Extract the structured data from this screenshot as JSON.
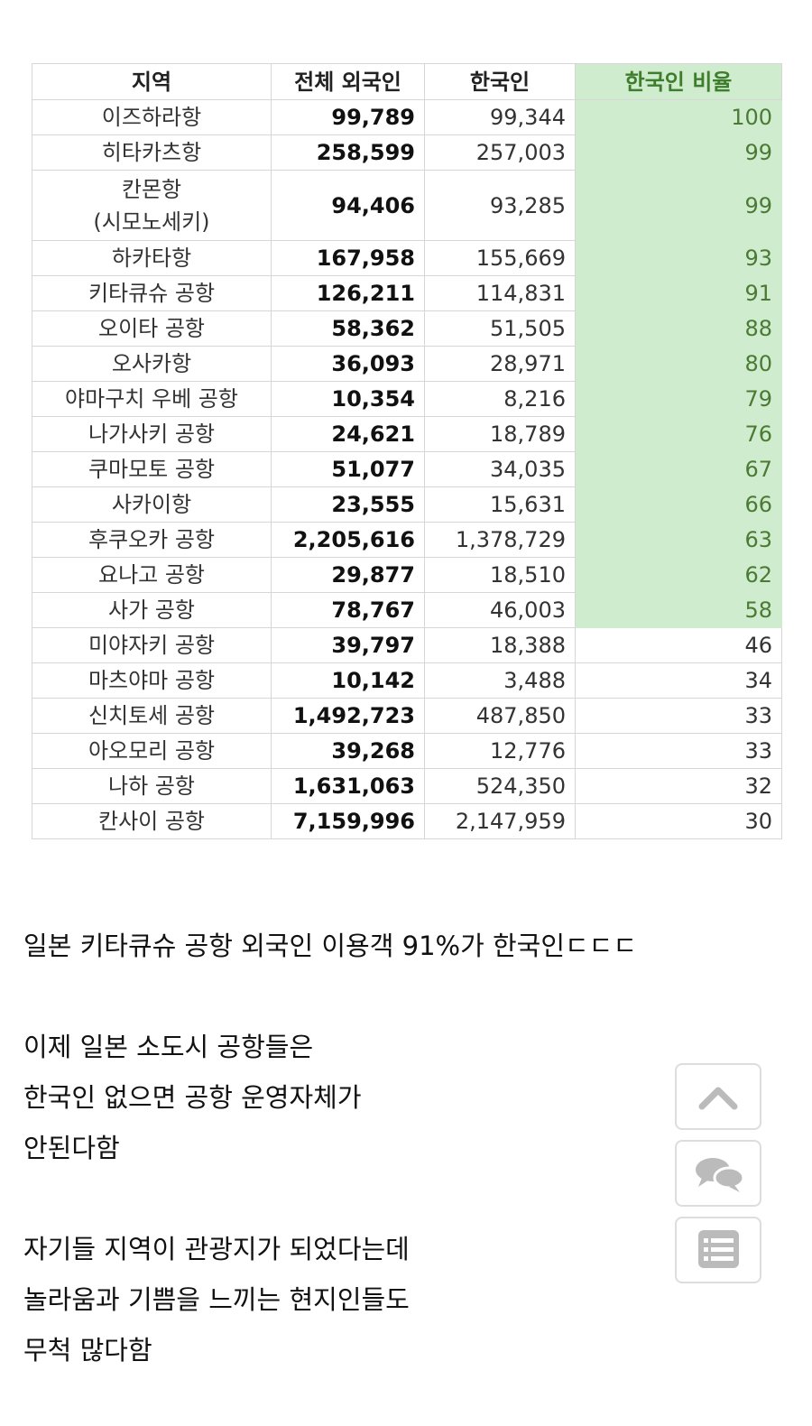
{
  "table": {
    "header": [
      "지역",
      "전체 외국인",
      "한국인",
      "한국인 비율"
    ],
    "rows": [
      [
        "이즈하라항",
        "99,789",
        "99,344",
        100
      ],
      [
        "히타카츠항",
        "258,599",
        "257,003",
        99
      ],
      [
        "칸몬항\n(시모노세키)",
        "94,406",
        "93,285",
        99
      ],
      [
        "하카타항",
        "167,958",
        "155,669",
        93
      ],
      [
        "키타큐슈 공항",
        "126,211",
        "114,831",
        91
      ],
      [
        "오이타 공항",
        "58,362",
        "51,505",
        88
      ],
      [
        "오사카항",
        "36,093",
        "28,971",
        80
      ],
      [
        "야마구치 우베 공항",
        "10,354",
        "8,216",
        79
      ],
      [
        "나가사키 공항",
        "24,621",
        "18,789",
        76
      ],
      [
        "쿠마모토 공항",
        "51,077",
        "34,035",
        67
      ],
      [
        "사카이항",
        "23,555",
        "15,631",
        66
      ],
      [
        "후쿠오카 공항",
        "2,205,616",
        "1,378,729",
        63
      ],
      [
        "요나고 공항",
        "29,877",
        "18,510",
        62
      ],
      [
        "사가 공항",
        "78,767",
        "46,003",
        58
      ],
      [
        "미야자키 공항",
        "39,797",
        "18,388",
        46
      ],
      [
        "마츠야마 공항",
        "10,142",
        "3,488",
        34
      ],
      [
        "신치토세 공항",
        "1,492,723",
        "487,850",
        33
      ],
      [
        "아오모리 공항",
        "39,268",
        "12,776",
        33
      ],
      [
        "나하 공항",
        "1,631,063",
        "524,350",
        32
      ],
      [
        "칸사이 공항",
        "7,159,996",
        "2,147,959",
        30
      ]
    ]
  },
  "post": {
    "paragraphs": [
      [
        "일본 키타큐슈 공항 외국인 이용객 91%가 한국인ㄷㄷㄷ"
      ],
      [
        "이제 일본 소도시 공항들은",
        "한국인 없으면 공항 운영자체가",
        "안된다함"
      ],
      [
        "자기들 지역이 관광지가 되었다는데",
        "놀라움과 기쁨을 느끼는 현지인들도",
        "무척 많다함"
      ]
    ]
  }
}
